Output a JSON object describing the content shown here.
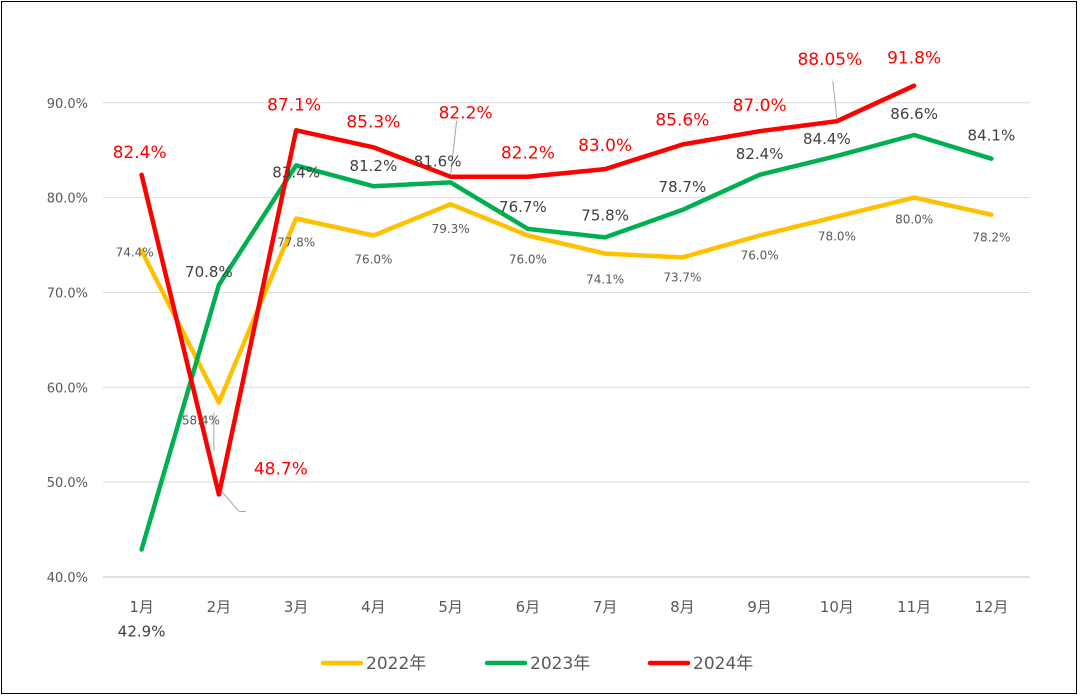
{
  "chart_data": {
    "type": "line",
    "title": "",
    "xlabel": "",
    "ylabel": "",
    "categories": [
      "1月",
      "2月",
      "3月",
      "4月",
      "5月",
      "6月",
      "7月",
      "8月",
      "9月",
      "10月",
      "11月",
      "12月"
    ],
    "y_ticks": [
      "40.0%",
      "50.0%",
      "60.0%",
      "70.0%",
      "80.0%",
      "90.0%"
    ],
    "ylim": [
      40,
      92.5
    ],
    "grid": true,
    "legend_position": "bottom",
    "series": [
      {
        "name": "2022年",
        "color": "#FFC000",
        "values": [
          74.4,
          58.4,
          77.8,
          76.0,
          79.3,
          76.0,
          74.1,
          73.7,
          76.0,
          78.0,
          80.0,
          78.2
        ],
        "labels": [
          "74.4%",
          "58.4%",
          "77.8%",
          "76.0%",
          "79.3%",
          "76.0%",
          "74.1%",
          "73.7%",
          "76.0%",
          "78.0%",
          "80.0%",
          "78.2%"
        ]
      },
      {
        "name": "2023年",
        "color": "#00B050",
        "values": [
          42.9,
          70.8,
          83.4,
          81.2,
          81.6,
          76.7,
          75.8,
          78.7,
          82.4,
          84.4,
          86.6,
          84.1
        ],
        "labels": [
          "42.9%",
          "70.8%",
          "83.4%",
          "81.2%",
          "81.6%",
          "76.7%",
          "75.8%",
          "78.7%",
          "82.4%",
          "84.4%",
          "86.6%",
          "84.1%"
        ]
      },
      {
        "name": "2024年",
        "color": "#FF0000",
        "values": [
          82.4,
          48.7,
          87.1,
          85.3,
          82.2,
          82.2,
          83.0,
          85.6,
          87.0,
          88.05,
          91.8,
          null
        ],
        "labels": [
          "82.4%",
          "48.7%",
          "87.1%",
          "85.3%",
          "82.2%",
          "82.2%",
          "83.0%",
          "85.6%",
          "87.0%",
          "88.05%",
          "91.8%",
          null
        ]
      }
    ]
  }
}
